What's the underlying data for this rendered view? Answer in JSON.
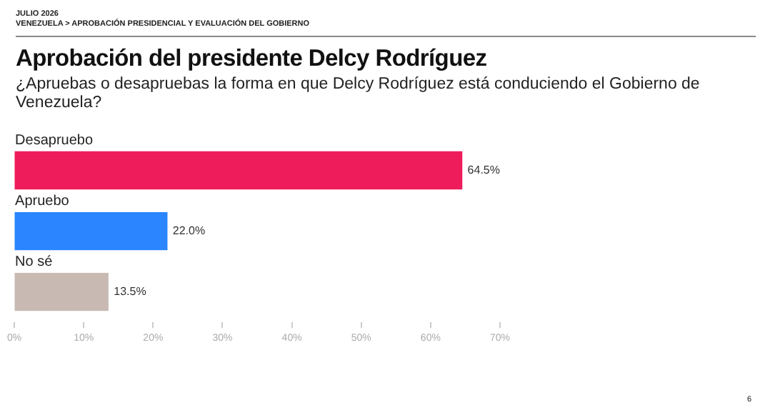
{
  "chart_data": {
    "type": "bar",
    "orientation": "horizontal",
    "title": "Aprobación del presidente Delcy Rodríguez",
    "subtitle": "¿Apruebas o desapruebas la forma en que Delcy Rodríguez está conduciendo el Gobierno de Venezuela?",
    "categories": [
      "Desapruebo",
      "Apruebo",
      "No sé"
    ],
    "values": [
      64.5,
      22.0,
      13.5
    ],
    "colors": [
      "#ee1c5b",
      "#2a85ff",
      "#c8bab2"
    ],
    "value_labels": [
      "64.5%",
      "22.0%",
      "13.5%"
    ],
    "xlim": [
      0,
      70
    ],
    "xticks": [
      {
        "value": 0,
        "label": "0%"
      },
      {
        "value": 10,
        "label": "10%"
      },
      {
        "value": 20,
        "label": "20%"
      },
      {
        "value": 30,
        "label": "30%"
      },
      {
        "value": 40,
        "label": "40%"
      },
      {
        "value": 50,
        "label": "50%"
      },
      {
        "value": 60,
        "label": "60%"
      },
      {
        "value": 70,
        "label": "70%"
      }
    ],
    "annotations": [
      "JULIO 2026",
      "VENEZUELA > APROBACIÓN PRESIDENCIAL Y EVALUACIÓN DEL GOBIERNO",
      "6"
    ]
  }
}
